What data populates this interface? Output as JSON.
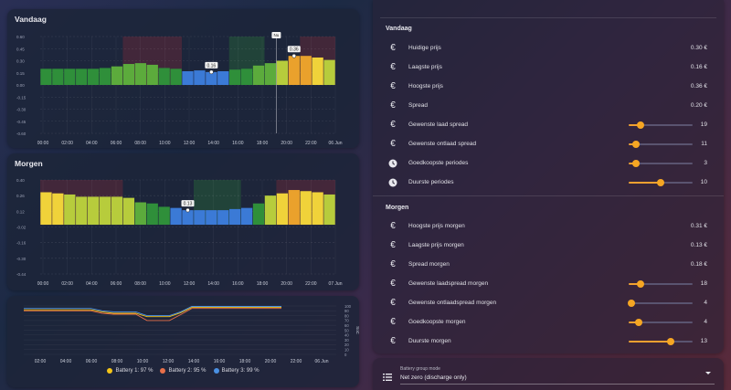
{
  "today_card": {
    "title": "Vandaag",
    "y_ticks": [
      "0.60",
      "0.45",
      "0.30",
      "0.15",
      "0.00",
      "-0.15",
      "-0.30",
      "-0.45",
      "-0.60"
    ],
    "x_ticks": [
      "00:00",
      "02:00",
      "04:00",
      "06:00",
      "08:00",
      "10:00",
      "12:00",
      "14:00",
      "16:00",
      "18:00",
      "20:00",
      "22:00",
      "06 Jun"
    ],
    "marker_min_label": "0.16",
    "marker_max_label": "0.36",
    "now_label": "Nu"
  },
  "tomorrow_card": {
    "title": "Morgen",
    "y_ticks": [
      "0.40",
      "0.26",
      "0.12",
      "-0.02",
      "-0.16",
      "-0.30",
      "-0.44"
    ],
    "x_ticks": [
      "00:00",
      "02:00",
      "04:00",
      "06:00",
      "08:00",
      "10:00",
      "12:00",
      "14:00",
      "16:00",
      "18:00",
      "20:00",
      "22:00",
      "07 Jun"
    ],
    "marker_min_label": "0.13"
  },
  "battery_card": {
    "y_ticks": [
      "100",
      "90",
      "80",
      "70",
      "60",
      "50",
      "40",
      "30",
      "20",
      "10",
      "0"
    ],
    "y_unit": "SoC",
    "x_ticks": [
      "02:00",
      "04:00",
      "06:00",
      "08:00",
      "10:00",
      "12:00",
      "14:00",
      "16:00",
      "18:00",
      "20:00",
      "22:00",
      "06 Jun"
    ],
    "legend": [
      {
        "label": "Battery 1: 97 %",
        "color": "#f5c518"
      },
      {
        "label": "Battery 2: 95 %",
        "color": "#e8704a"
      },
      {
        "label": "Battery 3: 99 %",
        "color": "#4a90e2"
      }
    ]
  },
  "entities_today": {
    "title": "Vandaag",
    "rows": [
      {
        "icon": "euro-icon",
        "label": "Huidige prijs",
        "value": "0.30 €"
      },
      {
        "icon": "euro-icon",
        "label": "Laagste prijs",
        "value": "0.16 €"
      },
      {
        "icon": "euro-icon",
        "label": "Hoogste prijs",
        "value": "0.36 €"
      },
      {
        "icon": "euro-icon",
        "label": "Spread",
        "value": "0.20 €"
      },
      {
        "icon": "euro-icon",
        "label": "Gewenste laad spread",
        "value": "19",
        "slider": 0.19
      },
      {
        "icon": "euro-icon",
        "label": "Gewenste ontlaad spread",
        "value": "11",
        "slider": 0.11
      },
      {
        "icon": "clock-icon",
        "label": "Goedkoopste periodes",
        "value": "3",
        "slider": 0.12
      },
      {
        "icon": "clock-icon",
        "label": "Duurste periodes",
        "value": "10",
        "slider": 0.5
      }
    ]
  },
  "entities_tomorrow": {
    "title": "Morgen",
    "rows": [
      {
        "icon": "euro-icon",
        "label": "Hoogste prijs morgen",
        "value": "0.31 €"
      },
      {
        "icon": "euro-icon",
        "label": "Laagste prijs morgen",
        "value": "0.13 €"
      },
      {
        "icon": "euro-icon",
        "label": "Spread morgen",
        "value": "0.18 €"
      },
      {
        "icon": "euro-icon",
        "label": "Gewenste laadspread morgen",
        "value": "18",
        "slider": 0.18
      },
      {
        "icon": "euro-icon",
        "label": "Gewenste ontlaadspread morgen",
        "value": "4",
        "slider": 0.04
      },
      {
        "icon": "euro-icon",
        "label": "Goedkoopste morgen",
        "value": "4",
        "slider": 0.16
      },
      {
        "icon": "euro-icon",
        "label": "Duurste morgen",
        "value": "13",
        "slider": 0.65
      }
    ]
  },
  "battery_mode": {
    "label": "Battery group mode",
    "value": "Net zero (discharge only)"
  },
  "chart_data": [
    {
      "type": "bar",
      "title": "Vandaag",
      "ylim": [
        -0.6,
        0.6
      ],
      "values": [
        0.2,
        0.2,
        0.2,
        0.2,
        0.2,
        0.21,
        0.23,
        0.26,
        0.27,
        0.25,
        0.21,
        0.2,
        0.17,
        0.18,
        0.16,
        0.17,
        0.19,
        0.2,
        0.24,
        0.27,
        0.3,
        0.36,
        0.36,
        0.34,
        0.31
      ]
    },
    {
      "type": "bar",
      "title": "Morgen",
      "ylim": [
        -0.44,
        0.4
      ],
      "values": [
        0.29,
        0.28,
        0.27,
        0.25,
        0.25,
        0.25,
        0.25,
        0.24,
        0.2,
        0.19,
        0.16,
        0.15,
        0.13,
        0.13,
        0.13,
        0.13,
        0.14,
        0.15,
        0.19,
        0.26,
        0.28,
        0.31,
        0.3,
        0.29,
        0.27
      ]
    },
    {
      "type": "line",
      "ylim": [
        0,
        100
      ],
      "series": [
        {
          "name": "Battery 1: 97 %",
          "values": [
            92,
            92,
            92,
            92,
            92,
            92,
            92,
            88,
            85,
            85,
            85,
            78,
            78,
            78,
            86,
            97,
            97,
            97,
            97,
            97,
            97,
            97,
            97,
            97
          ]
        },
        {
          "name": "Battery 2: 95 %",
          "values": [
            90,
            90,
            90,
            90,
            90,
            90,
            90,
            85,
            83,
            83,
            83,
            70,
            70,
            70,
            82,
            95,
            95,
            95,
            95,
            95,
            95,
            95,
            95,
            95
          ]
        },
        {
          "name": "Battery 3: 99 %",
          "values": [
            95,
            95,
            95,
            95,
            95,
            95,
            95,
            90,
            88,
            88,
            88,
            80,
            80,
            80,
            88,
            99,
            99,
            99,
            99,
            99,
            99,
            99,
            99,
            99
          ]
        }
      ]
    }
  ]
}
